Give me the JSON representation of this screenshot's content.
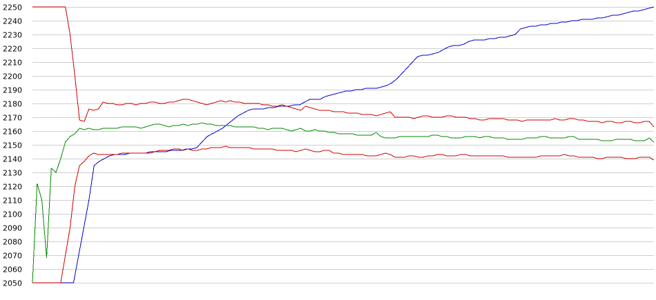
{
  "chart_data": {
    "type": "line",
    "title": "",
    "xlabel": "",
    "ylabel": "",
    "ylim": [
      2050,
      2250
    ],
    "yticks": [
      2050,
      2060,
      2070,
      2080,
      2090,
      2100,
      2110,
      2120,
      2130,
      2140,
      2150,
      2160,
      2170,
      2180,
      2190,
      2200,
      2210,
      2220,
      2230,
      2240,
      2250
    ],
    "grid": true,
    "legend": "none",
    "series": [
      {
        "color": "#0000cc",
        "values": [
          2050,
          2050,
          2050,
          2050,
          2050,
          2050,
          2050,
          2050,
          2050,
          2070,
          2090,
          2110,
          2135,
          2138,
          2140,
          2142,
          2143,
          2143,
          2143,
          2144,
          2144,
          2144,
          2144,
          2145,
          2145,
          2145,
          2145,
          2146,
          2146,
          2146,
          2147,
          2147,
          2148,
          2152,
          2156,
          2158,
          2160,
          2162,
          2165,
          2168,
          2171,
          2173,
          2175,
          2176,
          2176,
          2176,
          2177,
          2177,
          2178,
          2178,
          2178,
          2179,
          2179,
          2181,
          2183,
          2183,
          2183,
          2185,
          2186,
          2187,
          2188,
          2189,
          2189,
          2190,
          2190,
          2191,
          2191,
          2191,
          2192,
          2193,
          2195,
          2198,
          2202,
          2206,
          2210,
          2214,
          2215,
          2215,
          2216,
          2217,
          2219,
          2221,
          2222,
          2222,
          2223,
          2225,
          2226,
          2226,
          2226,
          2227,
          2227,
          2228,
          2228,
          2229,
          2230,
          2234,
          2235,
          2236,
          2236,
          2237,
          2237,
          2238,
          2238,
          2239,
          2239,
          2240,
          2240,
          2241,
          2241,
          2241,
          2242,
          2242,
          2243,
          2244,
          2244,
          2245,
          2246,
          2247,
          2247,
          2248,
          2249,
          2250
        ]
      },
      {
        "color": "#cc0000",
        "values": [
          2250,
          2250,
          2250,
          2250,
          2250,
          2250,
          2250,
          2250,
          2230,
          2200,
          2168,
          2167,
          2176,
          2175,
          2176,
          2181,
          2180,
          2180,
          2179,
          2179,
          2180,
          2180,
          2179,
          2180,
          2180,
          2181,
          2181,
          2180,
          2180,
          2181,
          2181,
          2182,
          2183,
          2183,
          2182,
          2181,
          2180,
          2179,
          2180,
          2181,
          2182,
          2181,
          2182,
          2181,
          2181,
          2180,
          2180,
          2180,
          2180,
          2179,
          2179,
          2178,
          2178,
          2179,
          2178,
          2177,
          2176,
          2175,
          2178,
          2177,
          2176,
          2175,
          2175,
          2175,
          2174,
          2174,
          2174,
          2173,
          2173,
          2173,
          2172,
          2172,
          2172,
          2171,
          2172,
          2173,
          2174,
          2170,
          2170,
          2170,
          2170,
          2169,
          2170,
          2171,
          2171,
          2170,
          2170,
          2170,
          2171,
          2171,
          2170,
          2170,
          2170,
          2169,
          2169,
          2168,
          2168,
          2169,
          2169,
          2169,
          2169,
          2168,
          2168,
          2168,
          2167,
          2168,
          2168,
          2168,
          2168,
          2168,
          2168,
          2169,
          2168,
          2168,
          2169,
          2169,
          2168,
          2168,
          2167,
          2167,
          2167,
          2166,
          2167,
          2167,
          2166,
          2166,
          2167,
          2167,
          2166,
          2166,
          2167,
          2167,
          2163
        ]
      },
      {
        "color": "#008800",
        "values": [
          2050,
          2122,
          2110,
          2068,
          2133,
          2130,
          2140,
          2152,
          2156,
          2158,
          2162,
          2161,
          2162,
          2161,
          2161,
          2162,
          2162,
          2162,
          2162,
          2163,
          2163,
          2163,
          2163,
          2162,
          2163,
          2164,
          2165,
          2165,
          2164,
          2163,
          2164,
          2164,
          2165,
          2164,
          2165,
          2165,
          2166,
          2165,
          2165,
          2164,
          2164,
          2164,
          2164,
          2163,
          2163,
          2163,
          2163,
          2163,
          2162,
          2162,
          2161,
          2162,
          2162,
          2162,
          2161,
          2160,
          2161,
          2162,
          2160,
          2160,
          2161,
          2160,
          2160,
          2159,
          2159,
          2158,
          2158,
          2158,
          2158,
          2157,
          2157,
          2157,
          2157,
          2159,
          2156,
          2155,
          2155,
          2155,
          2156,
          2156,
          2156,
          2156,
          2156,
          2156,
          2156,
          2157,
          2157,
          2156,
          2156,
          2155,
          2155,
          2155,
          2156,
          2156,
          2156,
          2155,
          2156,
          2156,
          2155,
          2155,
          2155,
          2154,
          2154,
          2154,
          2154,
          2155,
          2155,
          2155,
          2156,
          2156,
          2155,
          2155,
          2155,
          2155,
          2156,
          2156,
          2154,
          2154,
          2154,
          2154,
          2154,
          2153,
          2153,
          2153,
          2154,
          2154,
          2154,
          2154,
          2153,
          2153,
          2153,
          2155,
          2152
        ]
      },
      {
        "color": "#cc0000",
        "values": [
          2050,
          2050,
          2050,
          2050,
          2050,
          2050,
          2050,
          2070,
          2090,
          2120,
          2135,
          2138,
          2142,
          2144,
          2143,
          2143,
          2143,
          2143,
          2143,
          2144,
          2144,
          2144,
          2144,
          2144,
          2144,
          2144,
          2145,
          2146,
          2146,
          2146,
          2147,
          2147,
          2146,
          2147,
          2146,
          2146,
          2147,
          2147,
          2148,
          2148,
          2148,
          2149,
          2148,
          2148,
          2148,
          2148,
          2148,
          2147,
          2147,
          2147,
          2147,
          2147,
          2146,
          2146,
          2146,
          2146,
          2145,
          2146,
          2147,
          2146,
          2145,
          2145,
          2146,
          2146,
          2144,
          2144,
          2143,
          2143,
          2143,
          2143,
          2143,
          2142,
          2142,
          2142,
          2143,
          2144,
          2143,
          2141,
          2141,
          2141,
          2142,
          2142,
          2141,
          2141,
          2142,
          2142,
          2143,
          2143,
          2142,
          2142,
          2142,
          2143,
          2143,
          2142,
          2142,
          2142,
          2142,
          2142,
          2142,
          2142,
          2142,
          2141,
          2141,
          2141,
          2141,
          2141,
          2141,
          2141,
          2142,
          2142,
          2142,
          2142,
          2142,
          2143,
          2142,
          2142,
          2141,
          2141,
          2141,
          2141,
          2140,
          2140,
          2141,
          2141,
          2141,
          2141,
          2140,
          2140,
          2140,
          2141,
          2141,
          2141,
          2139
        ]
      }
    ]
  }
}
